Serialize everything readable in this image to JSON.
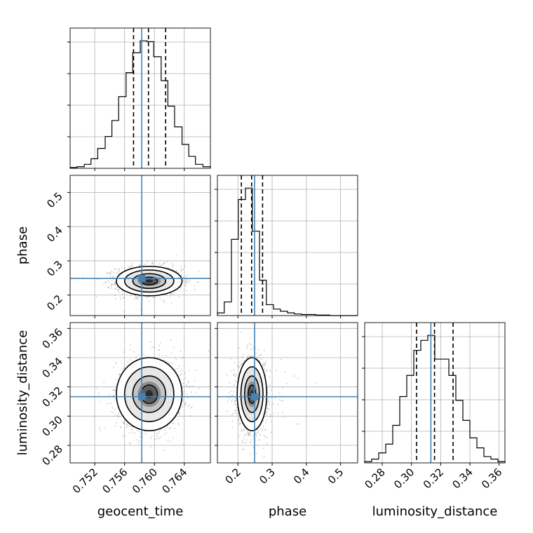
{
  "chart_data": {
    "type": "corner",
    "parameters": [
      "geocent_time",
      "phase",
      "luminosity_distance"
    ],
    "axis_labels": [
      "geocent_time",
      "phase",
      "luminosity_distance"
    ],
    "truths": [
      0.7583,
      0.2487,
      0.3133
    ],
    "quantiles": {
      "geocent_time": [
        0.7572,
        0.7592,
        0.7615
      ],
      "phase": [
        0.21,
        0.24,
        0.272
      ],
      "luminosity_distance": [
        0.3035,
        0.3158,
        0.3285
      ]
    },
    "ranges": {
      "geocent_time": [
        0.7487,
        0.7675
      ],
      "phase": [
        0.14,
        0.55
      ],
      "luminosity_distance": [
        0.268,
        0.364
      ]
    },
    "ticks": {
      "geocent_time": [
        0.752,
        0.756,
        0.76,
        0.764
      ],
      "phase": [
        0.2,
        0.3,
        0.4,
        0.5
      ],
      "luminosity_distance": [
        0.28,
        0.3,
        0.32,
        0.34,
        0.36
      ]
    },
    "tick_labels": {
      "geocent_time": [
        "0.752",
        "0.756",
        "0.760",
        "0.764"
      ],
      "phase_x": [
        "0.2",
        "0.3",
        "0.4",
        "0.5"
      ],
      "phase_y": [
        "0.2",
        "0.3",
        "0.4",
        "0.5"
      ],
      "luminosity_distance": [
        "0.28",
        "0.30",
        "0.32",
        "0.34",
        "0.36"
      ]
    },
    "histograms": {
      "geocent_time": {
        "edges": [
          0.7487,
          0.7496,
          0.7506,
          0.7515,
          0.7524,
          0.7534,
          0.7543,
          0.7552,
          0.7562,
          0.7571,
          0.7581,
          0.759,
          0.7599,
          0.7609,
          0.7618,
          0.7627,
          0.7637,
          0.7646,
          0.7655,
          0.7665,
          0.7675
        ],
        "counts": [
          1,
          2,
          5,
          12,
          25,
          40,
          60,
          90,
          120,
          145,
          160,
          159,
          140,
          110,
          78,
          52,
          30,
          15,
          5,
          2
        ]
      },
      "phase": {
        "edges": [
          0.14,
          0.16,
          0.181,
          0.201,
          0.222,
          0.242,
          0.263,
          0.283,
          0.304,
          0.324,
          0.345,
          0.365,
          0.386,
          0.406,
          0.427,
          0.447,
          0.468,
          0.488,
          0.509,
          0.529,
          0.55
        ],
        "counts": [
          5,
          25,
          140,
          213,
          234,
          155,
          65,
          20,
          12,
          8,
          5,
          3,
          2,
          2,
          1,
          1,
          0,
          0,
          0,
          0
        ]
      },
      "luminosity_distance": {
        "edges": [
          0.268,
          0.2728,
          0.2776,
          0.2824,
          0.2872,
          0.292,
          0.2968,
          0.3016,
          0.3064,
          0.3112,
          0.316,
          0.3208,
          0.3256,
          0.3304,
          0.3352,
          0.34,
          0.3448,
          0.3496,
          0.3544,
          0.3592,
          0.364
        ],
        "counts": [
          1,
          3,
          8,
          15,
          30,
          53,
          70,
          90,
          98,
          102,
          83,
          83,
          70,
          50,
          34,
          20,
          12,
          5,
          3,
          1
        ]
      }
    },
    "density_2d": [
      {
        "x": "geocent_time",
        "y": "phase",
        "center": [
          0.7593,
          0.241
        ],
        "sigma": [
          0.0022,
          0.0215
        ],
        "rho": 0.0
      },
      {
        "x": "geocent_time",
        "y": "luminosity_distance",
        "center": [
          0.7593,
          0.315
        ],
        "sigma": [
          0.0022,
          0.0125
        ],
        "rho": 0.05
      },
      {
        "x": "phase",
        "y": "luminosity_distance",
        "center": [
          0.241,
          0.315
        ],
        "sigma": [
          0.0215,
          0.0125
        ],
        "rho": 0.0
      }
    ],
    "contour_levels_sigma": [
      0.5,
      1.0,
      1.5,
      2.0
    ],
    "colors": {
      "truth": "#4682b4",
      "hist": "#000000",
      "grid": "#b0b0b0",
      "points": "#888888"
    },
    "grid": true
  }
}
